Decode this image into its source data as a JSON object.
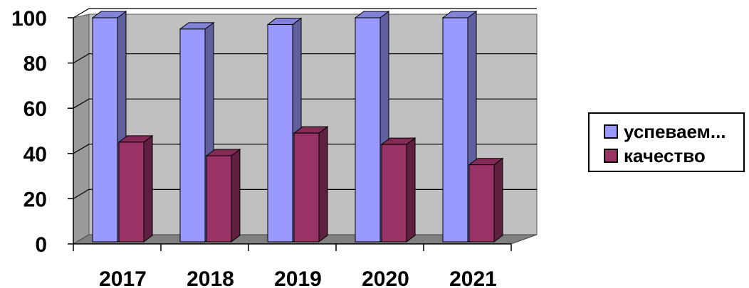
{
  "chart_data": {
    "type": "bar",
    "categories": [
      "2017",
      "2018",
      "2019",
      "2020",
      "2021"
    ],
    "series": [
      {
        "name": "успеваем...",
        "values": [
          100,
          95,
          97,
          100,
          100
        ],
        "color": "#9999FF"
      },
      {
        "name": "качество",
        "values": [
          45,
          39,
          49,
          44,
          35
        ],
        "color": "#993366"
      }
    ],
    "ylim": [
      0,
      100
    ],
    "yticks": [
      "0",
      "20",
      "40",
      "60",
      "80",
      "100"
    ],
    "grid": true,
    "legend": "right",
    "title": "",
    "xlabel": "",
    "ylabel": ""
  }
}
